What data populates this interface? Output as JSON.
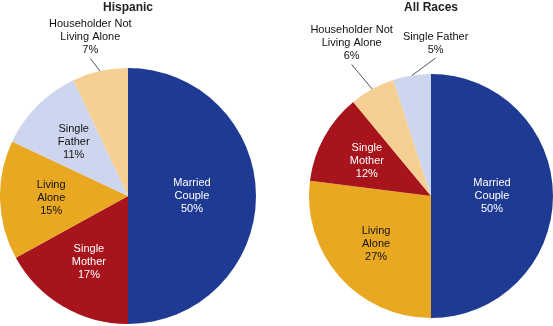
{
  "chart_data": [
    {
      "type": "pie",
      "title": "Hispanic",
      "categories": [
        "Married Couple",
        "Single Mother",
        "Living Alone",
        "Single Father",
        "Householder Not Living Alone"
      ],
      "values": [
        50,
        17,
        15,
        11,
        7
      ],
      "value_labels": [
        "50%",
        "17%",
        "15%",
        "11%",
        "7%"
      ],
      "colors": [
        "#1f3a93",
        "#a8141c",
        "#e9a822",
        "#cdd6ee",
        "#f6cf93"
      ],
      "data_labels": true
    },
    {
      "type": "pie",
      "title": "All Races",
      "categories": [
        "Married Couple",
        "Living Alone",
        "Single Mother",
        "Householder Not Living Alone",
        "Single Father"
      ],
      "values": [
        50,
        27,
        12,
        6,
        5
      ],
      "value_labels": [
        "50%",
        "27%",
        "12%",
        "6%",
        "5%"
      ],
      "colors": [
        "#1f3a93",
        "#e9a822",
        "#a8141c",
        "#f6cf93",
        "#cdd6ee"
      ],
      "data_labels": true
    }
  ]
}
